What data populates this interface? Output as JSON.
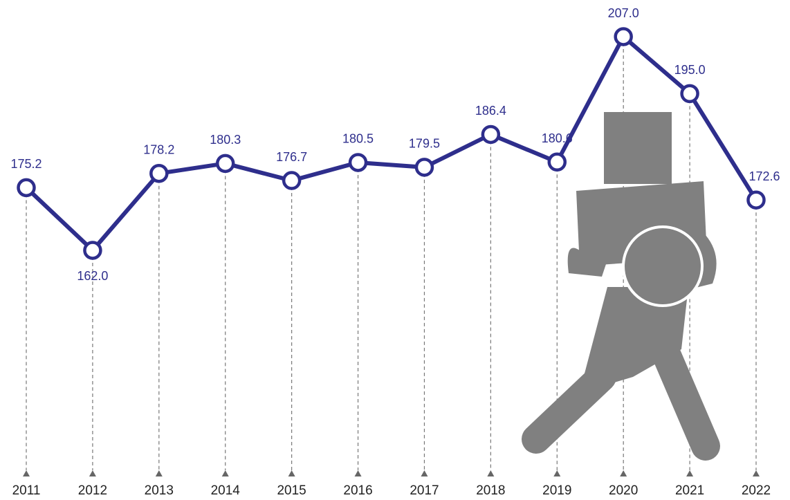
{
  "chart_data": {
    "type": "line",
    "categories": [
      "2011",
      "2012",
      "2013",
      "2014",
      "2015",
      "2016",
      "2017",
      "2018",
      "2019",
      "2020",
      "2021",
      "2022"
    ],
    "values": [
      175.2,
      162.0,
      178.2,
      180.3,
      176.7,
      180.5,
      179.5,
      186.4,
      180.6,
      207.0,
      195.0,
      172.6
    ],
    "value_labels": [
      "175.2",
      "162.0",
      "178.2",
      "180.3",
      "176.7",
      "180.5",
      "179.5",
      "186.4",
      "180.6",
      "207.0",
      "195.0",
      "172.6"
    ],
    "color": "#2e2e8c"
  }
}
